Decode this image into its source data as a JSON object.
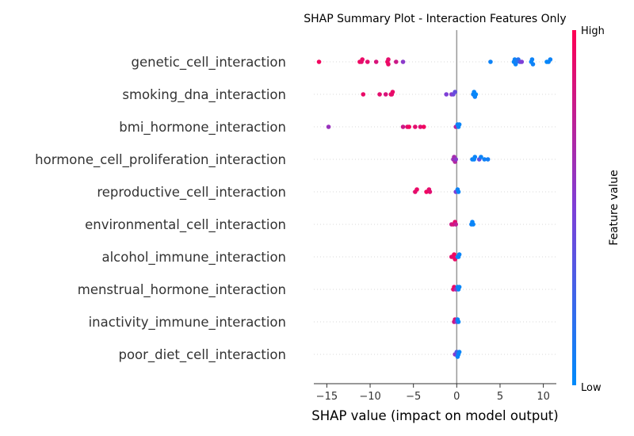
{
  "chart_data": {
    "type": "scatter",
    "title": "SHAP Summary Plot - Interaction Features Only",
    "xlabel": "SHAP value (impact on model output)",
    "ylabel": "",
    "xlim": [
      -16.5,
      11.5
    ],
    "xticks": [
      -15,
      -10,
      -5,
      0,
      5,
      10
    ],
    "xtick_labels": [
      "−15",
      "−10",
      "−5",
      "0",
      "5",
      "10"
    ],
    "colorbar": {
      "title": "Feature value",
      "high_label": "High",
      "low_label": "Low",
      "low_color": "#008bfb",
      "high_color": "#ff0052"
    },
    "features": [
      {
        "name": "genetic_cell_interaction",
        "points": [
          [
            -15.9,
            0.95
          ],
          [
            -11.2,
            0.95
          ],
          [
            -11.0,
            0.9
          ],
          [
            -10.9,
            0.92
          ],
          [
            -10.3,
            0.9
          ],
          [
            -9.3,
            0.85
          ],
          [
            -8.0,
            0.95
          ],
          [
            -7.9,
            0.9
          ],
          [
            -7.9,
            0.92
          ],
          [
            -7.0,
            0.8
          ],
          [
            -6.2,
            0.55
          ],
          [
            3.9,
            0.05
          ],
          [
            6.6,
            0.02
          ],
          [
            6.7,
            0.05
          ],
          [
            6.8,
            0.03
          ],
          [
            6.9,
            0.1
          ],
          [
            7.1,
            0.15
          ],
          [
            7.3,
            0.3
          ],
          [
            7.5,
            0.5
          ],
          [
            8.6,
            0.02
          ],
          [
            8.7,
            0.05
          ],
          [
            8.8,
            0.06
          ],
          [
            10.4,
            0.02
          ],
          [
            10.6,
            0.03
          ],
          [
            10.8,
            0.05
          ]
        ]
      },
      {
        "name": "smoking_dna_interaction",
        "points": [
          [
            -10.8,
            0.92
          ],
          [
            -8.9,
            0.9
          ],
          [
            -8.2,
            0.85
          ],
          [
            -7.6,
            0.95
          ],
          [
            -7.5,
            0.9
          ],
          [
            -7.4,
            0.92
          ],
          [
            -1.2,
            0.5
          ],
          [
            -0.6,
            0.55
          ],
          [
            -0.4,
            0.45
          ],
          [
            -0.2,
            0.4
          ],
          [
            1.9,
            0.05
          ],
          [
            2.0,
            0.03
          ],
          [
            2.1,
            0.06
          ],
          [
            2.2,
            0.02
          ]
        ]
      },
      {
        "name": "bmi_hormone_interaction",
        "points": [
          [
            -14.8,
            0.6
          ],
          [
            -6.2,
            0.8
          ],
          [
            -5.7,
            0.9
          ],
          [
            -5.5,
            0.95
          ],
          [
            -4.8,
            0.9
          ],
          [
            -4.2,
            0.88
          ],
          [
            -3.8,
            0.95
          ],
          [
            -0.1,
            0.7
          ],
          [
            0.1,
            0.05
          ],
          [
            0.2,
            0.03
          ],
          [
            0.3,
            0.04
          ]
        ]
      },
      {
        "name": "hormone_cell_proliferation_interaction",
        "points": [
          [
            -0.4,
            0.6
          ],
          [
            -0.3,
            0.65
          ],
          [
            -0.2,
            0.7
          ],
          [
            -0.1,
            0.55
          ],
          [
            1.8,
            0.05
          ],
          [
            2.0,
            0.03
          ],
          [
            2.1,
            0.04
          ],
          [
            2.6,
            0.4
          ],
          [
            2.8,
            0.05
          ],
          [
            3.2,
            0.06
          ],
          [
            3.6,
            0.08
          ]
        ]
      },
      {
        "name": "reproductive_cell_interaction",
        "points": [
          [
            -4.8,
            0.9
          ],
          [
            -4.6,
            0.92
          ],
          [
            -3.5,
            0.95
          ],
          [
            -3.2,
            0.9
          ],
          [
            -3.1,
            0.88
          ],
          [
            -0.1,
            0.5
          ],
          [
            0.1,
            0.05
          ],
          [
            0.2,
            0.03
          ]
        ]
      },
      {
        "name": "environmental_cell_interaction",
        "points": [
          [
            -0.6,
            0.8
          ],
          [
            -0.4,
            0.85
          ],
          [
            -0.2,
            0.9
          ],
          [
            -0.1,
            0.75
          ],
          [
            1.7,
            0.05
          ],
          [
            1.8,
            0.03
          ],
          [
            1.9,
            0.04
          ]
        ]
      },
      {
        "name": "alcohol_immune_interaction",
        "points": [
          [
            -0.6,
            0.88
          ],
          [
            -0.4,
            0.9
          ],
          [
            -0.3,
            0.95
          ],
          [
            -0.2,
            0.92
          ],
          [
            0.1,
            0.05
          ],
          [
            0.2,
            0.03
          ],
          [
            0.3,
            0.04
          ]
        ]
      },
      {
        "name": "menstrual_hormone_interaction",
        "points": [
          [
            -0.4,
            0.9
          ],
          [
            -0.3,
            0.92
          ],
          [
            -0.1,
            0.6
          ],
          [
            0.1,
            0.05
          ],
          [
            0.2,
            0.03
          ],
          [
            0.3,
            0.04
          ]
        ]
      },
      {
        "name": "inactivity_immune_interaction",
        "points": [
          [
            -0.3,
            0.8
          ],
          [
            -0.2,
            0.85
          ],
          [
            0.0,
            0.5
          ],
          [
            0.1,
            0.05
          ],
          [
            0.2,
            0.03
          ]
        ]
      },
      {
        "name": "poor_diet_cell_interaction",
        "points": [
          [
            -0.2,
            0.6
          ],
          [
            -0.1,
            0.5
          ],
          [
            0.0,
            0.3
          ],
          [
            0.1,
            0.05
          ],
          [
            0.2,
            0.03
          ],
          [
            0.3,
            0.04
          ]
        ]
      }
    ]
  }
}
